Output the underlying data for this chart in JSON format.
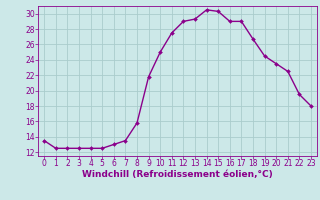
{
  "x": [
    0,
    1,
    2,
    3,
    4,
    5,
    6,
    7,
    8,
    9,
    10,
    11,
    12,
    13,
    14,
    15,
    16,
    17,
    18,
    19,
    20,
    21,
    22,
    23
  ],
  "y": [
    13.5,
    12.5,
    12.5,
    12.5,
    12.5,
    12.5,
    13.0,
    13.5,
    15.8,
    21.8,
    25.0,
    27.5,
    29.0,
    29.3,
    30.5,
    30.3,
    29.0,
    29.0,
    26.7,
    24.5,
    23.5,
    22.5,
    19.5,
    18.0
  ],
  "line_color": "#8B008B",
  "marker": "D",
  "marker_size": 2.0,
  "bg_color": "#cce8e8",
  "grid_color": "#aacccc",
  "spine_color": "#8B008B",
  "xlabel": "Windchill (Refroidissement éolien,°C)",
  "xlabel_color": "#8B008B",
  "xticks": [
    0,
    1,
    2,
    3,
    4,
    5,
    6,
    7,
    8,
    9,
    10,
    11,
    12,
    13,
    14,
    15,
    16,
    17,
    18,
    19,
    20,
    21,
    22,
    23
  ],
  "yticks": [
    12,
    14,
    16,
    18,
    20,
    22,
    24,
    26,
    28,
    30
  ],
  "ylim": [
    11.5,
    31.0
  ],
  "xlim": [
    -0.5,
    23.5
  ],
  "tick_color": "#8B008B",
  "tick_labelsize": 5.5,
  "xlabel_fontsize": 6.5
}
